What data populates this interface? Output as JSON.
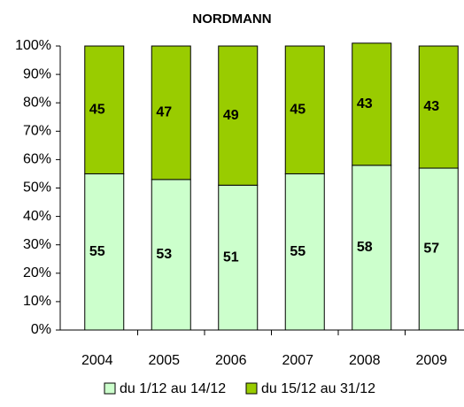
{
  "chart_data": {
    "type": "stacked_bar",
    "title": "NORDMANN",
    "categories": [
      "2004",
      "2005",
      "2006",
      "2007",
      "2008",
      "2009"
    ],
    "series": [
      {
        "name": "du 1/12 au 14/12",
        "color": "#ccffcc",
        "values": [
          55,
          53,
          51,
          55,
          58,
          57
        ]
      },
      {
        "name": "du 15/12 au 31/12",
        "color": "#99cc00",
        "values": [
          45,
          47,
          49,
          45,
          43,
          43
        ]
      }
    ],
    "ylim": [
      0,
      100
    ],
    "yticks": [
      {
        "value": 0,
        "label": "0%"
      },
      {
        "value": 10,
        "label": "10%"
      },
      {
        "value": 20,
        "label": "20%"
      },
      {
        "value": 30,
        "label": "30%"
      },
      {
        "value": 40,
        "label": "40%"
      },
      {
        "value": 50,
        "label": "50%"
      },
      {
        "value": 60,
        "label": "60%"
      },
      {
        "value": 70,
        "label": "70%"
      },
      {
        "value": 80,
        "label": "80%"
      },
      {
        "value": 90,
        "label": "90%"
      },
      {
        "value": 100,
        "label": "100%"
      }
    ],
    "data_labels": true
  }
}
